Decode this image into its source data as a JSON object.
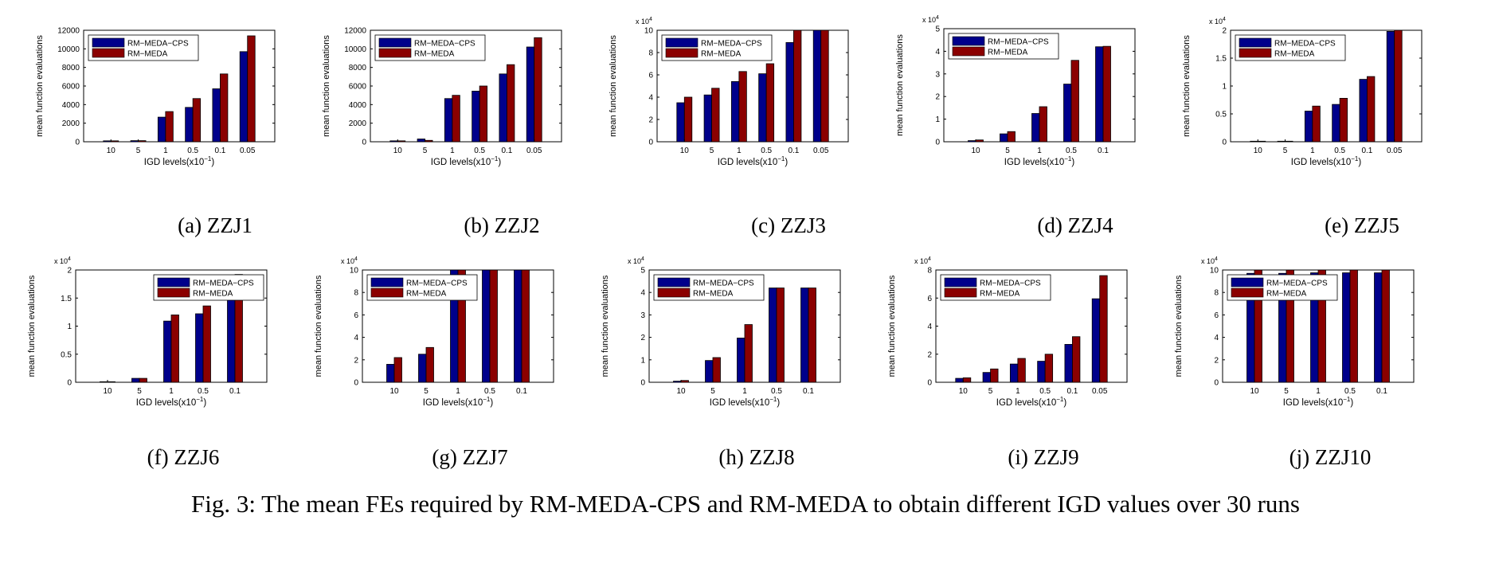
{
  "figure": {
    "caption": "Fig. 3: The mean FEs required by RM-MEDA-CPS and RM-MEDA to obtain different IGD values over 30 runs"
  },
  "colors": {
    "RM-MEDA-CPS": "#00008b",
    "RM-MEDA": "#8b0000"
  },
  "chart_data": [
    {
      "type": "bar",
      "caption": "(a) ZZJ1",
      "categories": [
        "10",
        "5",
        "1",
        "0.5",
        "0.1",
        "0.05"
      ],
      "series": [
        {
          "name": "RM−MEDA−CPS",
          "values": [
            100,
            120,
            2650,
            3700,
            5700,
            9700
          ]
        },
        {
          "name": "RM−MEDA",
          "values": [
            100,
            120,
            3250,
            4650,
            7300,
            11400
          ]
        }
      ],
      "xlabel": "IGD levels(x10",
      "xlabel_exp": "−1",
      "xlabel_suffix": ")",
      "ylabel": "mean function evaluations",
      "ylim": [
        0,
        12000
      ],
      "yticks": [
        "0",
        "2000",
        "4000",
        "6000",
        "8000",
        "10000",
        "12000"
      ],
      "yexp": "",
      "legend": "top-left",
      "grid": false
    },
    {
      "type": "bar",
      "caption": "(b) ZZJ2",
      "categories": [
        "10",
        "5",
        "1",
        "0.5",
        "0.1",
        "0.05"
      ],
      "series": [
        {
          "name": "RM−MEDA−CPS",
          "values": [
            100,
            300,
            4650,
            5450,
            7300,
            10200
          ]
        },
        {
          "name": "RM−MEDA",
          "values": [
            100,
            150,
            5000,
            6000,
            8300,
            11200
          ]
        }
      ],
      "xlabel": "IGD levels(x10",
      "xlabel_exp": "−1",
      "xlabel_suffix": ")",
      "ylabel": "mean function evaluations",
      "ylim": [
        0,
        12000
      ],
      "yticks": [
        "0",
        "2000",
        "4000",
        "6000",
        "8000",
        "10000",
        "12000"
      ],
      "yexp": "",
      "legend": "top-left",
      "grid": false
    },
    {
      "type": "bar",
      "caption": "(c) ZZJ3",
      "categories": [
        "10",
        "5",
        "1",
        "0.5",
        "0.1",
        "0.05"
      ],
      "series": [
        {
          "name": "RM−MEDA−CPS",
          "values": [
            3.5,
            4.2,
            5.4,
            6.1,
            8.9,
            10
          ]
        },
        {
          "name": "RM−MEDA",
          "values": [
            4.0,
            4.8,
            6.3,
            7.0,
            10,
            10
          ]
        }
      ],
      "xlabel": "IGD levels(x10",
      "xlabel_exp": "−1",
      "xlabel_suffix": ")",
      "ylabel": "mean function evaluations",
      "ylim": [
        0,
        10
      ],
      "yticks": [
        "0",
        "2",
        "4",
        "6",
        "8",
        "10"
      ],
      "yexp": "4",
      "legend": "top-left",
      "grid": false
    },
    {
      "type": "bar",
      "caption": "(d) ZZJ4",
      "categories": [
        "10",
        "5",
        "1",
        "0.5",
        "0.1"
      ],
      "series": [
        {
          "name": "RM−MEDA−CPS",
          "values": [
            0.05,
            0.35,
            1.25,
            2.55,
            4.2
          ]
        },
        {
          "name": "RM−MEDA",
          "values": [
            0.08,
            0.45,
            1.55,
            3.6,
            4.22
          ]
        }
      ],
      "xlabel": "IGD levels(x10",
      "xlabel_exp": "−1",
      "xlabel_suffix": ")",
      "ylabel": "mean function evaluations",
      "ylim": [
        0,
        5
      ],
      "yticks": [
        "0",
        "1",
        "2",
        "3",
        "4",
        "5"
      ],
      "yexp": "4",
      "legend": "top-left",
      "grid": false
    },
    {
      "type": "bar",
      "caption": "(e) ZZJ5",
      "categories": [
        "10",
        "5",
        "1",
        "0.5",
        "0.1",
        "0.05"
      ],
      "series": [
        {
          "name": "RM−MEDA−CPS",
          "values": [
            0.01,
            0.01,
            0.55,
            0.67,
            1.12,
            1.98
          ]
        },
        {
          "name": "RM−MEDA",
          "values": [
            0.01,
            0.01,
            0.64,
            0.78,
            1.17,
            2.0
          ]
        }
      ],
      "xlabel": "IGD levels(x10",
      "xlabel_exp": "−1",
      "xlabel_suffix": ")",
      "ylabel": "mean function evaluations",
      "ylim": [
        0,
        2
      ],
      "yticks": [
        "0",
        "0.5",
        "1",
        "1.5",
        "2"
      ],
      "yexp": "4",
      "legend": "top-left",
      "grid": false
    },
    {
      "type": "bar",
      "caption": "(f) ZZJ6",
      "categories": [
        "10",
        "5",
        "1",
        "0.5",
        "0.1"
      ],
      "series": [
        {
          "name": "RM−MEDA−CPS",
          "values": [
            0.01,
            0.07,
            1.09,
            1.22,
            1.6
          ]
        },
        {
          "name": "RM−MEDA",
          "values": [
            0.01,
            0.07,
            1.2,
            1.36,
            1.92
          ]
        }
      ],
      "xlabel": "IGD levels(x10",
      "xlabel_exp": "−1",
      "xlabel_suffix": ")",
      "ylabel": "mean function evaluations",
      "ylim": [
        0,
        2
      ],
      "yticks": [
        "0",
        "0.5",
        "1",
        "1.5",
        "2"
      ],
      "yexp": "4",
      "legend": "top-right",
      "grid": false
    },
    {
      "type": "bar",
      "caption": "(g) ZZJ7",
      "categories": [
        "10",
        "5",
        "1",
        "0.5",
        "0.1"
      ],
      "series": [
        {
          "name": "RM−MEDA−CPS",
          "values": [
            1.6,
            2.5,
            10,
            10,
            10
          ]
        },
        {
          "name": "RM−MEDA",
          "values": [
            2.2,
            3.1,
            10,
            10,
            10
          ]
        }
      ],
      "xlabel": "IGD levels(x10",
      "xlabel_exp": "−1",
      "xlabel_suffix": ")",
      "ylabel": "mean function evaluations",
      "ylim": [
        0,
        10
      ],
      "yticks": [
        "0",
        "2",
        "4",
        "6",
        "8",
        "10"
      ],
      "yexp": "4",
      "legend": "top-left",
      "grid": false
    },
    {
      "type": "bar",
      "caption": "(h) ZZJ8",
      "categories": [
        "10",
        "5",
        "1",
        "0.5",
        "0.1"
      ],
      "series": [
        {
          "name": "RM−MEDA−CPS",
          "values": [
            0.05,
            0.97,
            1.97,
            4.2,
            4.2
          ]
        },
        {
          "name": "RM−MEDA",
          "values": [
            0.08,
            1.1,
            2.57,
            4.2,
            4.2
          ]
        }
      ],
      "xlabel": "IGD levels(x10",
      "xlabel_exp": "−1",
      "xlabel_suffix": ")",
      "ylabel": "mean function evaluations",
      "ylim": [
        0,
        5
      ],
      "yticks": [
        "0",
        "1",
        "2",
        "3",
        "4",
        "5"
      ],
      "yexp": "4",
      "legend": "top-left",
      "grid": false
    },
    {
      "type": "bar",
      "caption": "(i) ZZJ9",
      "categories": [
        "10",
        "5",
        "1",
        "0.5",
        "0.1",
        "0.05"
      ],
      "series": [
        {
          "name": "RM−MEDA−CPS",
          "values": [
            0.28,
            0.7,
            1.3,
            1.5,
            2.7,
            5.95
          ]
        },
        {
          "name": "RM−MEDA",
          "values": [
            0.32,
            0.95,
            1.7,
            2.0,
            3.25,
            7.6
          ]
        }
      ],
      "xlabel": "IGD levels(x10",
      "xlabel_exp": "−1",
      "xlabel_suffix": ")",
      "ylabel": "mean function evaluations",
      "ylim": [
        0,
        8
      ],
      "yticks": [
        "0",
        "2",
        "4",
        "6",
        "8"
      ],
      "yexp": "4",
      "legend": "top-left",
      "grid": false
    },
    {
      "type": "bar",
      "caption": "(j) ZZJ10",
      "categories": [
        "10",
        "5",
        "1",
        "0.5",
        "0.1"
      ],
      "series": [
        {
          "name": "RM−MEDA−CPS",
          "values": [
            9.7,
            9.7,
            9.75,
            9.75,
            9.75
          ]
        },
        {
          "name": "RM−MEDA",
          "values": [
            10,
            10,
            10,
            10,
            10
          ]
        }
      ],
      "xlabel": "IGD levels(x10",
      "xlabel_exp": "−1",
      "xlabel_suffix": ")",
      "ylabel": "mean function evaluations",
      "ylim": [
        0,
        10
      ],
      "yticks": [
        "0",
        "2",
        "4",
        "6",
        "8",
        "10"
      ],
      "yexp": "4",
      "legend": "top-left",
      "grid": false
    }
  ]
}
